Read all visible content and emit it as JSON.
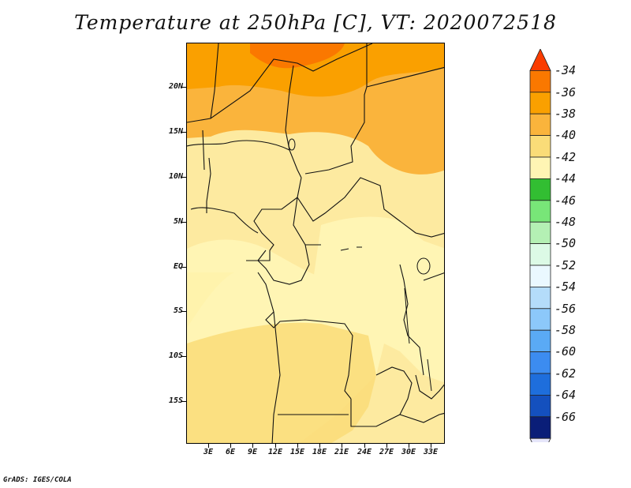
{
  "title": "Temperature at 250hPa [C], VT: 2020072518",
  "footer": "GrADS: IGES/COLA",
  "map": {
    "lat_labels": [
      "20N",
      "15N",
      "10N",
      "5N",
      "EQ",
      "5S",
      "10S",
      "15S"
    ],
    "lon_labels": [
      "3E",
      "6E",
      "9E",
      "12E",
      "15E",
      "18E",
      "21E",
      "24E",
      "27E",
      "30E",
      "33E"
    ],
    "field": "Temperature",
    "level": "250hPa",
    "units": "C",
    "valid_time": "2020072518"
  },
  "colorbar": {
    "labels": [
      "-34",
      "-36",
      "-38",
      "-40",
      "-42",
      "-44",
      "-46",
      "-48",
      "-50",
      "-52",
      "-54",
      "-56",
      "-58",
      "-60",
      "-62",
      "-64",
      "-66"
    ],
    "colors": [
      "#fa3c00",
      "#fa7800",
      "#faa000",
      "#fab43c",
      "#fadc78",
      "#fff5b4",
      "#32be32",
      "#78e678",
      "#b4f0b4",
      "#dcfae6",
      "#eaf8ff",
      "#b4dcfa",
      "#8cc8fa",
      "#5aaaf5",
      "#3c8cf0",
      "#1e6edc",
      "#1450be",
      "#0a1e78",
      "#e6e6fa"
    ]
  }
}
